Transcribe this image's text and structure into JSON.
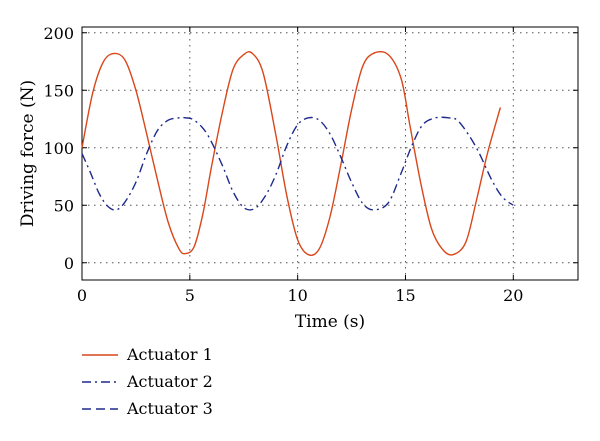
{
  "chart_data": {
    "type": "line",
    "title": "",
    "xlabel": "Time (s)",
    "ylabel": "Driving force (N)",
    "xlim": [
      0,
      23
    ],
    "ylim": [
      -15,
      205
    ],
    "xticks": [
      0,
      5,
      10,
      15,
      20
    ],
    "yticks": [
      0,
      50,
      100,
      150,
      200
    ],
    "grid": true,
    "legend_position": "below",
    "series": [
      {
        "name": "Actuator 1",
        "color": "#d9471a",
        "style": "solid",
        "x": [
          0,
          0.5,
          1.0,
          1.5,
          2.0,
          2.5,
          3.0,
          3.5,
          4.0,
          4.5,
          4.8,
          5.2,
          5.6,
          6.0,
          6.5,
          7.0,
          7.5,
          7.9,
          8.4,
          9.0,
          9.5,
          10.0,
          10.5,
          11.0,
          11.5,
          12.0,
          12.5,
          13.0,
          13.5,
          14.2,
          14.8,
          15.2,
          15.7,
          16.2,
          16.7,
          17.2,
          17.8,
          18.3,
          18.8,
          19.4
        ],
        "y": [
          100,
          148,
          175,
          182,
          176,
          150,
          112,
          72,
          35,
          12,
          8,
          14,
          42,
          83,
          130,
          168,
          181,
          182,
          165,
          110,
          58,
          20,
          7,
          12,
          40,
          85,
          133,
          170,
          182,
          181,
          160,
          120,
          70,
          30,
          12,
          7,
          18,
          55,
          95,
          135
        ]
      },
      {
        "name": "Actuator 2",
        "color": "#1f2a8c",
        "style": "dashdot",
        "x": [
          0,
          0.4,
          0.8,
          1.2,
          1.6,
          2.0,
          2.5,
          3.0,
          3.5,
          4.0,
          4.5,
          4.8,
          5.2,
          5.8,
          6.5,
          7.0,
          7.5,
          8.0,
          8.5,
          9.0,
          9.5,
          10.0,
          10.5,
          11.0,
          11.5,
          12.0,
          12.5,
          13.0,
          13.5,
          14.2,
          14.8,
          15.3,
          15.8,
          16.4,
          17.0,
          17.4,
          17.9,
          18.4,
          19.0,
          19.5,
          20.0
        ],
        "y": [
          95,
          78,
          60,
          49,
          46,
          53,
          70,
          95,
          115,
          124,
          126,
          126,
          124,
          112,
          85,
          62,
          48,
          47,
          58,
          77,
          102,
          120,
          126,
          124,
          112,
          92,
          70,
          52,
          46,
          52,
          78,
          102,
          120,
          126,
          126,
          124,
          112,
          96,
          72,
          57,
          50
        ]
      },
      {
        "name": "Actuator 3",
        "color": "#1f2a8c",
        "style": "dashed",
        "x": [],
        "y": []
      }
    ]
  }
}
